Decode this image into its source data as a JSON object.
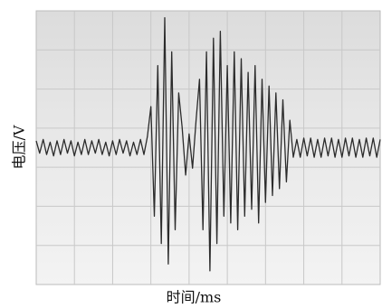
{
  "chart_data": {
    "type": "line",
    "x_label": "时间/ms",
    "y_label": "电压/V",
    "values": [
      0.05,
      -0.04,
      0.06,
      -0.05,
      0.04,
      -0.06,
      0.05,
      -0.05,
      0.06,
      -0.04,
      0.05,
      -0.06,
      0.04,
      -0.05,
      0.06,
      -0.05,
      0.05,
      -0.04,
      0.06,
      -0.05,
      0.04,
      -0.06,
      0.05,
      -0.05,
      0.06,
      -0.04,
      0.05,
      -0.06,
      0.04,
      -0.05,
      0.06,
      -0.05,
      0.08,
      0.3,
      -0.5,
      0.6,
      -0.7,
      0.95,
      -0.85,
      0.7,
      -0.6,
      0.4,
      0.15,
      -0.2,
      0.1,
      -0.15,
      0.2,
      0.5,
      -0.6,
      0.7,
      -0.9,
      0.8,
      -0.7,
      0.85,
      -0.5,
      0.6,
      -0.55,
      0.7,
      -0.6,
      0.65,
      -0.5,
      0.55,
      -0.45,
      0.6,
      -0.55,
      0.5,
      -0.4,
      0.45,
      -0.35,
      0.4,
      -0.3,
      0.35,
      -0.25,
      0.2,
      -0.07,
      0.06,
      -0.07,
      0.07,
      -0.06,
      0.07,
      -0.07,
      0.06,
      -0.07,
      0.07,
      -0.06,
      0.07,
      -0.07,
      0.06,
      -0.07,
      0.07,
      -0.06,
      0.07,
      -0.07,
      0.06,
      -0.07,
      0.07,
      -0.06,
      0.07,
      -0.07,
      0.06
    ],
    "color": "#2b2b2b",
    "ylim": [
      -1,
      1
    ],
    "grid": true
  }
}
